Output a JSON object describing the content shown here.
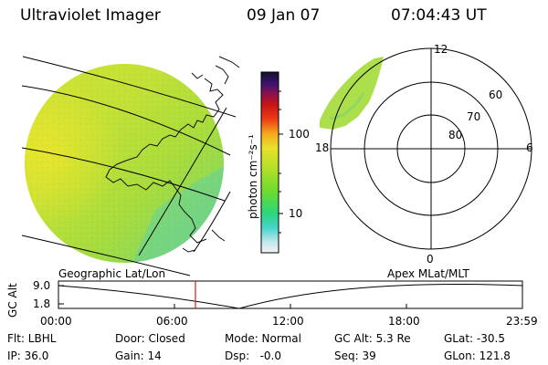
{
  "header": {
    "instrument": "Ultraviolet Imager",
    "date": "09 Jan 07",
    "time": "07:04:43 UT"
  },
  "colorbar": {
    "unit_label": "photon cm⁻²s⁻¹",
    "ticks": [
      "100",
      "10"
    ],
    "scale": "log"
  },
  "polar_plot": {
    "mlt_labels": [
      "12",
      "18",
      "6",
      "0"
    ],
    "lat_labels": [
      "60",
      "70",
      "80"
    ]
  },
  "timeline": {
    "left_label": "Geographic Lat/Lon",
    "right_label": "Apex MLat/MLT",
    "axis_title": "GC Alt",
    "y_ticks": [
      "9.0",
      "1.8"
    ],
    "x_ticks": [
      "00:00",
      "06:00",
      "12:00",
      "18:00",
      "23:59"
    ],
    "current_time_hours": 7.08
  },
  "footer": {
    "row1": [
      "Flt: LBHL",
      "Door: Closed",
      "Mode: Normal",
      "GC Alt: 5.3 Re",
      "GLat: -30.5"
    ],
    "row2": [
      "IP: 36.0",
      "Gain: 14",
      "Dsp:   -0.0",
      "Seq: 39",
      "GLon: 121.8"
    ]
  },
  "colors": {
    "disk_base": "#b9e13a",
    "disk_hot": "#e3e62c",
    "disk_cool": "#6fd37a",
    "marker": "#e01818"
  }
}
